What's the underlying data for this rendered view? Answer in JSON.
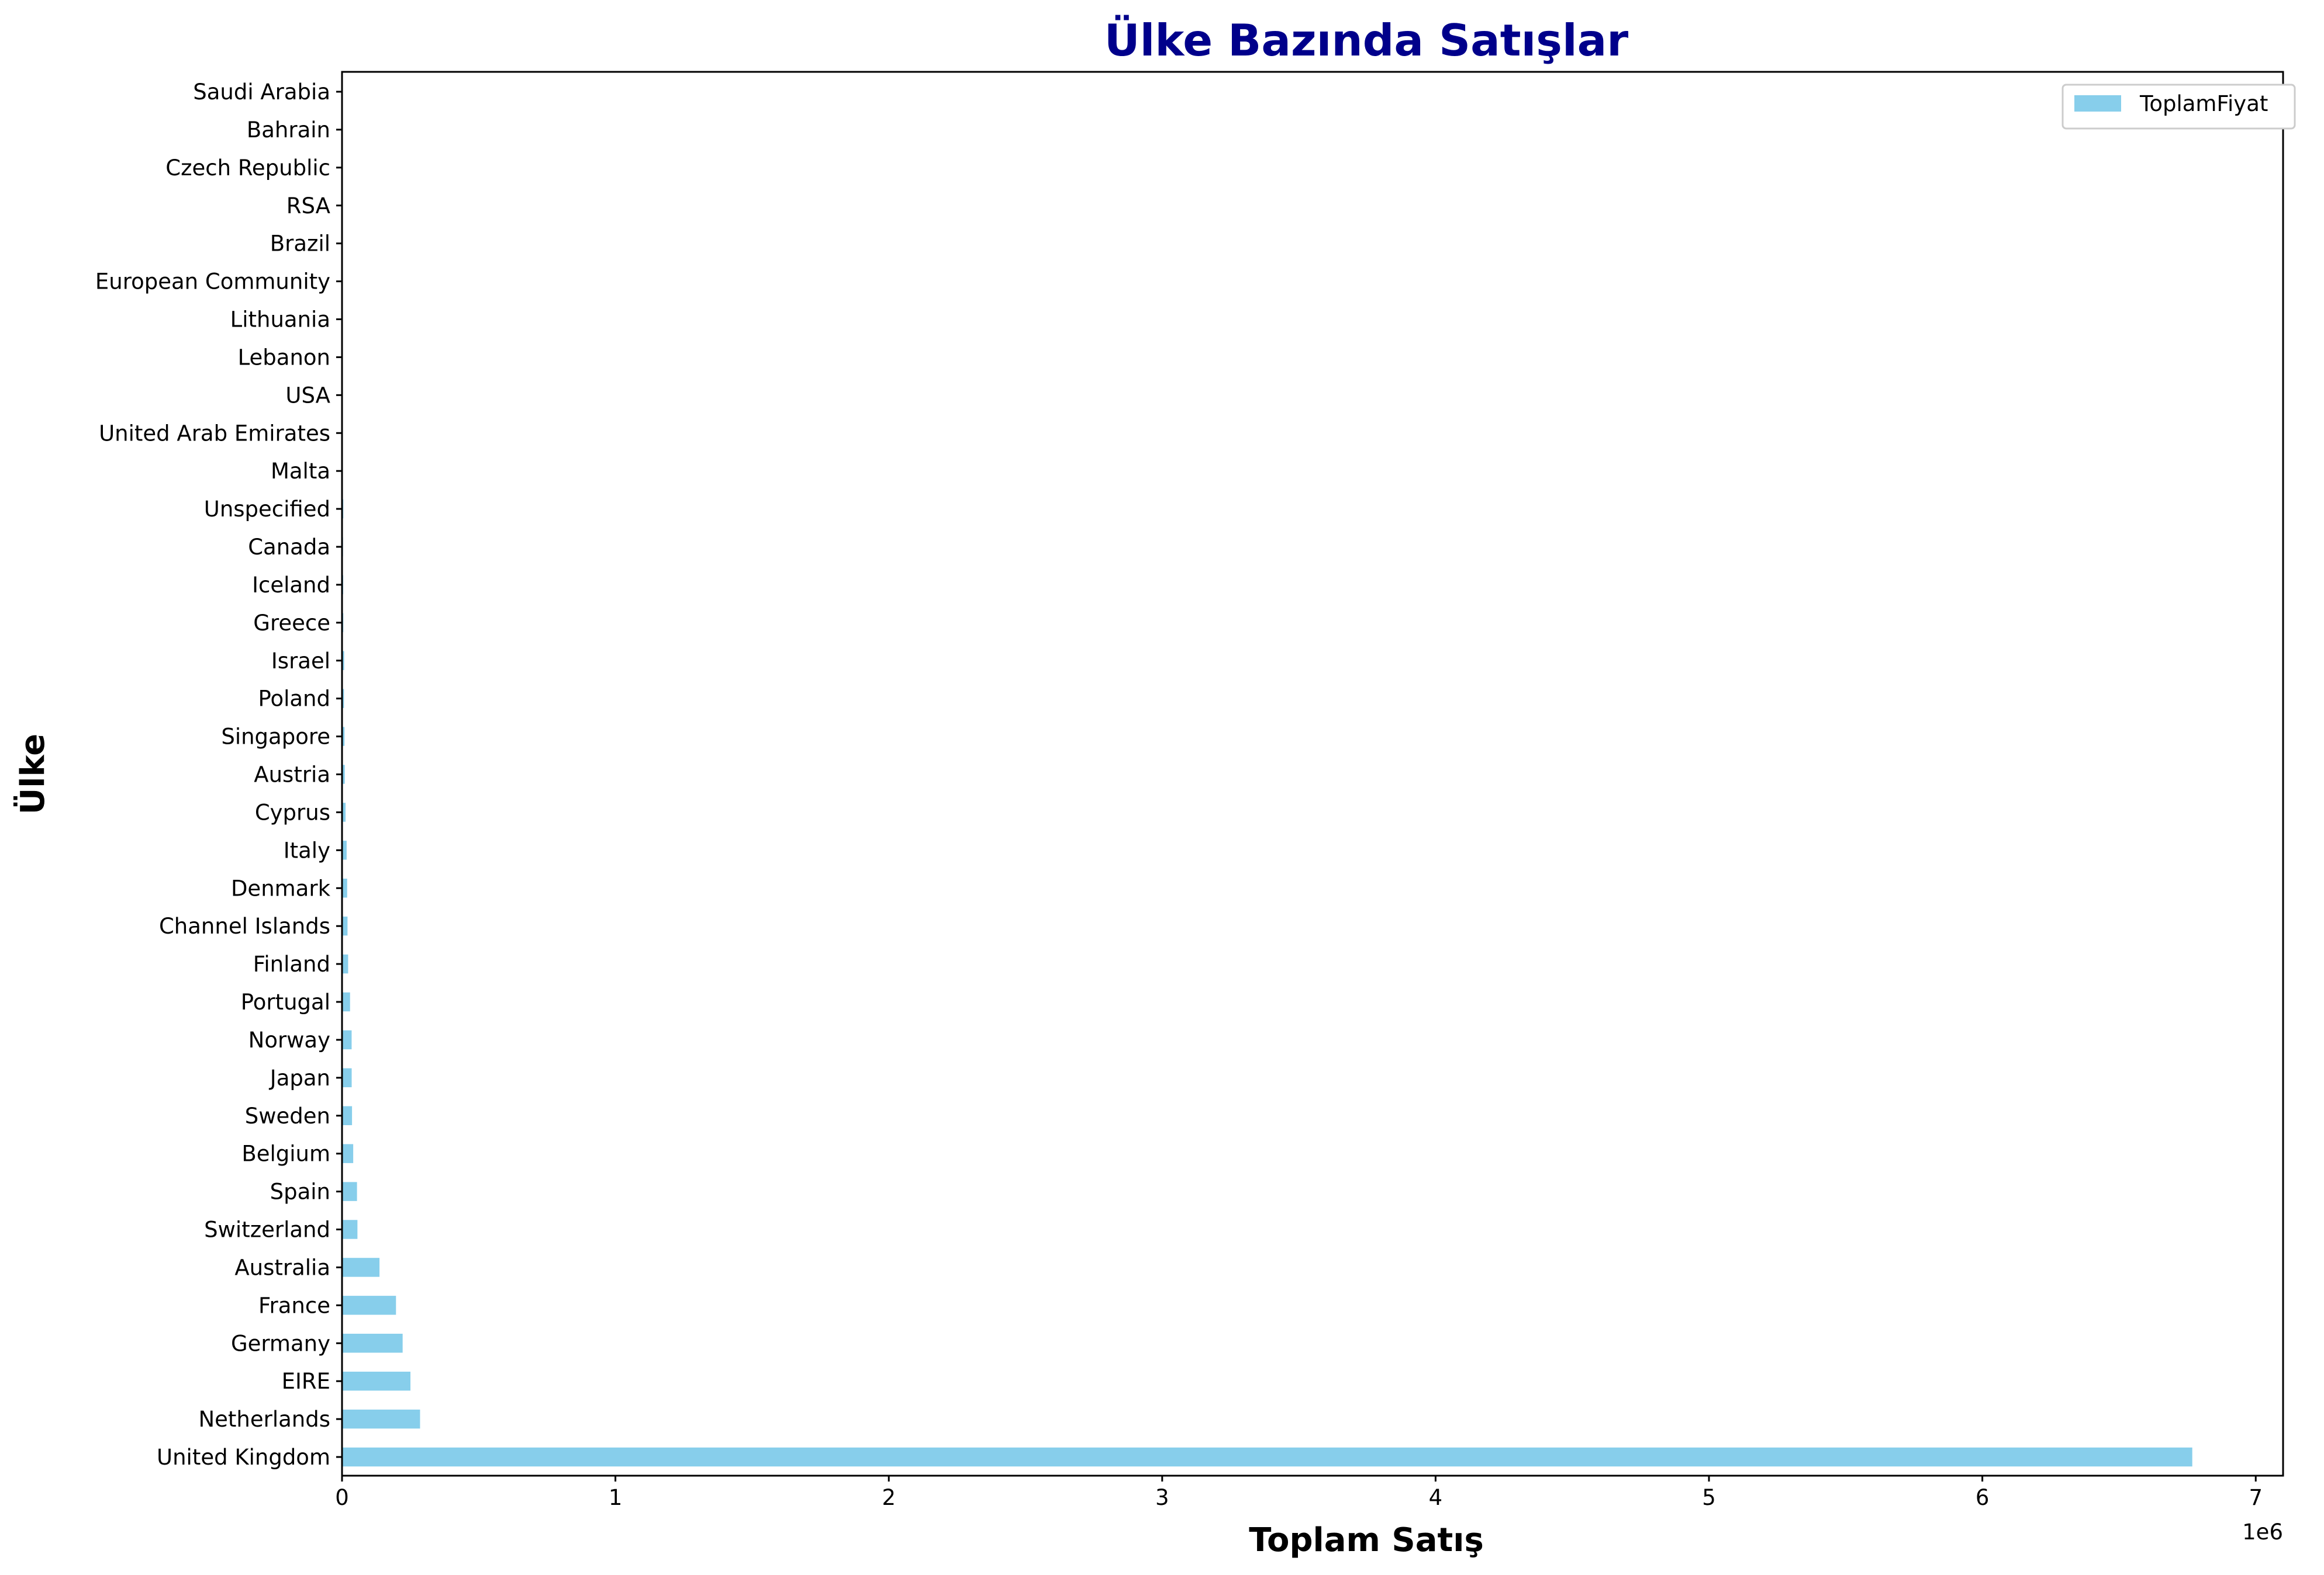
{
  "chart_data": {
    "type": "bar",
    "orientation": "horizontal",
    "title": "Ülke Bazında Satışlar",
    "xlabel": "Toplam Satış",
    "ylabel": "Ülke",
    "x_offset_label": "1e6",
    "x_ticks": [
      "0",
      "1",
      "2",
      "3",
      "4",
      "5",
      "6",
      "7"
    ],
    "xlim": [
      0,
      7100000
    ],
    "grid": false,
    "legend_position": "top-right",
    "bar_color": "#87ceeb",
    "series": [
      {
        "name": "ToplamFiyat",
        "categories": [
          "United Kingdom",
          "Netherlands",
          "EIRE",
          "Germany",
          "France",
          "Australia",
          "Switzerland",
          "Spain",
          "Belgium",
          "Sweden",
          "Japan",
          "Norway",
          "Portugal",
          "Finland",
          "Channel Islands",
          "Denmark",
          "Italy",
          "Cyprus",
          "Austria",
          "Singapore",
          "Poland",
          "Israel",
          "Greece",
          "Iceland",
          "Canada",
          "Unspecified",
          "Malta",
          "United Arab Emirates",
          "USA",
          "Lebanon",
          "Lithuania",
          "European Community",
          "Brazil",
          "RSA",
          "Czech Republic",
          "Bahrain",
          "Saudi Arabia"
        ],
        "values": [
          6767873,
          285446,
          250285,
          221698,
          197404,
          137077,
          56385,
          54775,
          40911,
          36596,
          35341,
          35163,
          29367,
          22327,
          20086,
          18768,
          16891,
          12946,
          10154,
          9120,
          7213,
          7907,
          4711,
          4310,
          3666,
          4749,
          2506,
          1902,
          1731,
          1694,
          1661,
          1291,
          1144,
          1003,
          708,
          548,
          131
        ]
      }
    ]
  }
}
